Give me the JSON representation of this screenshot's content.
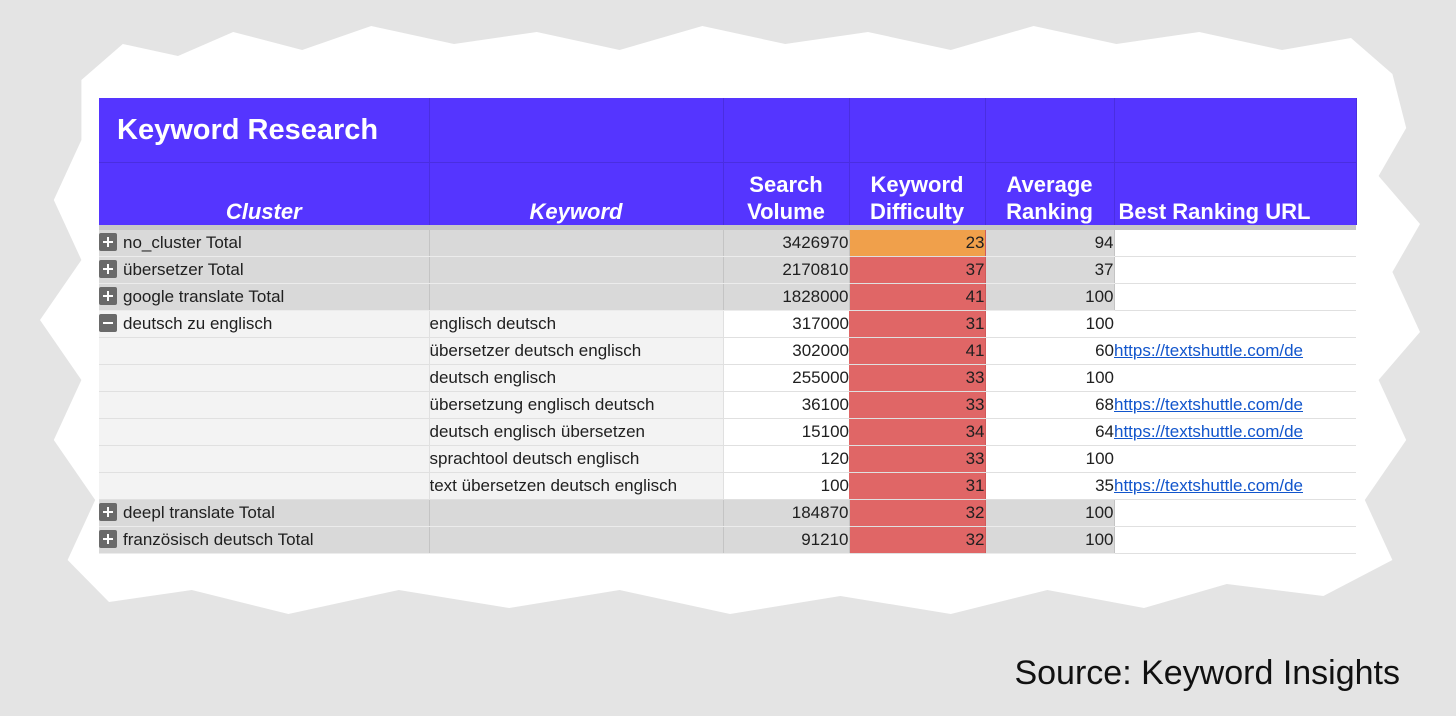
{
  "sheet": {
    "title": "Keyword Research",
    "headers": {
      "cluster": "Cluster",
      "keyword": "Keyword",
      "volume": "Search Volume",
      "difficulty": "Keyword Difficulty",
      "ranking": "Average Ranking",
      "url": "Best Ranking URL"
    },
    "difficulty_colors": {
      "red": "#e06666",
      "orange": "#f0a04b"
    },
    "header_color": "#5535ff",
    "rows": [
      {
        "cluster": "no_cluster Total",
        "keyword": "",
        "volume": "3426970",
        "difficulty": "23",
        "ranking": "94",
        "url": ""
      },
      {
        "cluster": "übersetzer Total",
        "keyword": "",
        "volume": "2170810",
        "difficulty": "37",
        "ranking": "37",
        "url": ""
      },
      {
        "cluster": "google translate Total",
        "keyword": "",
        "volume": "1828000",
        "difficulty": "41",
        "ranking": "100",
        "url": ""
      },
      {
        "cluster": "deutsch zu englisch",
        "keyword": "englisch deutsch",
        "volume": "317000",
        "difficulty": "31",
        "ranking": "100",
        "url": ""
      },
      {
        "cluster": "",
        "keyword": "übersetzer deutsch englisch",
        "volume": "302000",
        "difficulty": "41",
        "ranking": "60",
        "url": "https://textshuttle.com/de"
      },
      {
        "cluster": "",
        "keyword": "deutsch englisch",
        "volume": "255000",
        "difficulty": "33",
        "ranking": "100",
        "url": ""
      },
      {
        "cluster": "",
        "keyword": "übersetzung englisch deutsch",
        "volume": "36100",
        "difficulty": "33",
        "ranking": "68",
        "url": "https://textshuttle.com/de"
      },
      {
        "cluster": "",
        "keyword": "deutsch englisch übersetzen",
        "volume": "15100",
        "difficulty": "34",
        "ranking": "64",
        "url": "https://textshuttle.com/de"
      },
      {
        "cluster": "",
        "keyword": "sprachtool deutsch englisch",
        "volume": "120",
        "difficulty": "33",
        "ranking": "100",
        "url": ""
      },
      {
        "cluster": "",
        "keyword": "text übersetzen deutsch englisch",
        "volume": "100",
        "difficulty": "31",
        "ranking": "35",
        "url": "https://textshuttle.com/de"
      },
      {
        "cluster": "deepl translate Total",
        "keyword": "",
        "volume": "184870",
        "difficulty": "32",
        "ranking": "100",
        "url": ""
      },
      {
        "cluster": "französisch deutsch Total",
        "keyword": "",
        "volume": "91210",
        "difficulty": "32",
        "ranking": "100",
        "url": ""
      }
    ]
  },
  "source": "Source: Keyword Insights"
}
